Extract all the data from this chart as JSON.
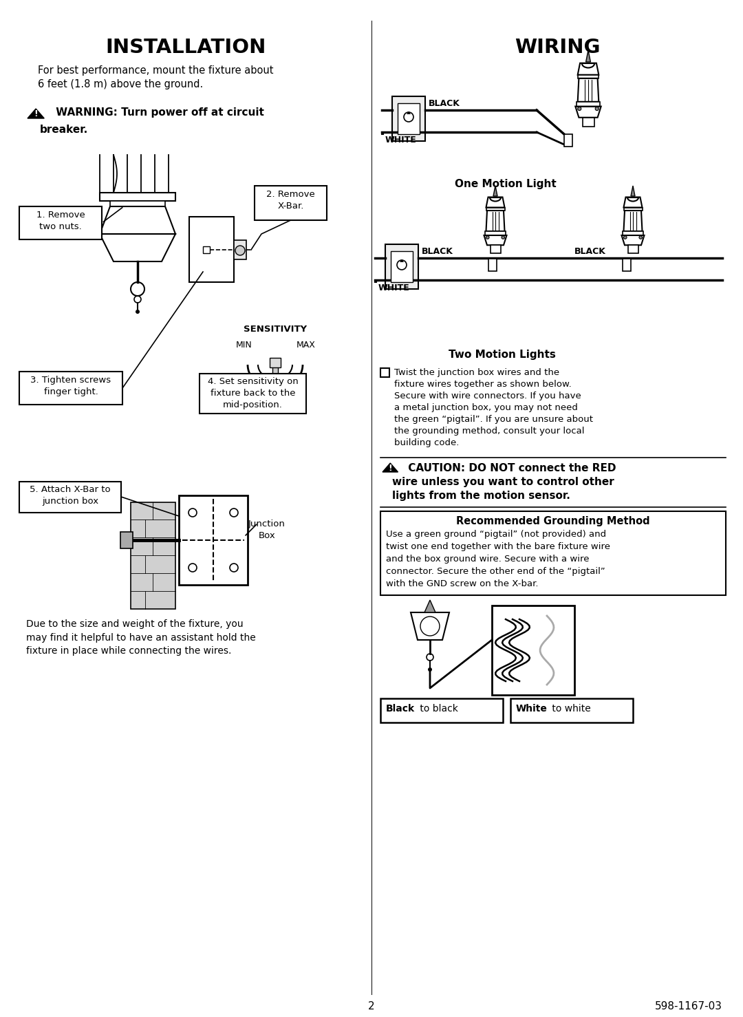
{
  "bg_color": "#ffffff",
  "page_width": 10.8,
  "page_height": 14.78,
  "title_installation": "INSTALLATION",
  "title_wiring": "WIRING",
  "install_intro": "For best performance, mount the fixture about\n6 feet (1.8 m) above the ground.",
  "warning_text_1": " WARNING: Turn power off at circuit",
  "warning_text_2": "breaker.",
  "step1_label": "1. Remove\ntwo nuts.",
  "step2_label": "2. Remove\nX-Bar.",
  "step3_label": "3. Tighten screws\nfinger tight.",
  "sensitivity_label": "SENSITIVITY",
  "min_label": "MIN",
  "max_label": "MAX",
  "step4_label": "4. Set sensitivity on\nfixture back to the\nmid-position.",
  "step5_label": "5. Attach X-Bar to\njunction box",
  "junction_box_label": "Junction\nBox",
  "bottom_text": "Due to the size and weight of the fixture, you\nmay find it helpful to have an assistant hold the\nfixture in place while connecting the wires.",
  "one_motion_title": "One Motion Light",
  "two_motion_title": "Two Motion Lights",
  "black_label1": "BLACK",
  "white_label1": "WHITE",
  "black_label2": "BLACK",
  "black_label3": "BLACK",
  "white_label2": "WHITE",
  "twist_text": "Twist the junction box wires and the\nfixture wires together as shown below.\nSecure with wire connectors. If you have\na metal junction box, you may not need\nthe green “pigtail”. If you are unsure about\nthe grounding method, consult your local\nbuilding code.",
  "caution_line1": " CAUTION: DO NOT connect the RED",
  "caution_line2": "wire unless you want to control other",
  "caution_line3": "lights from the motion sensor.",
  "grounding_title": "Recommended Grounding Method",
  "grounding_text": "Use a green ground “pigtail” (not provided) and\ntwist one end together with the bare fixture wire\nand the box ground wire. Secure with a wire\nconnector. Secure the other end of the “pigtail”\nwith the GND screw on the X-bar.",
  "black_bold": "Black",
  "to_black": " to black",
  "white_bold": "White",
  "to_white": " to white",
  "page_num": "2",
  "part_num": "598-1167-03",
  "line_color": "#000000",
  "gray_light": "#cccccc",
  "gray_medium": "#999999"
}
